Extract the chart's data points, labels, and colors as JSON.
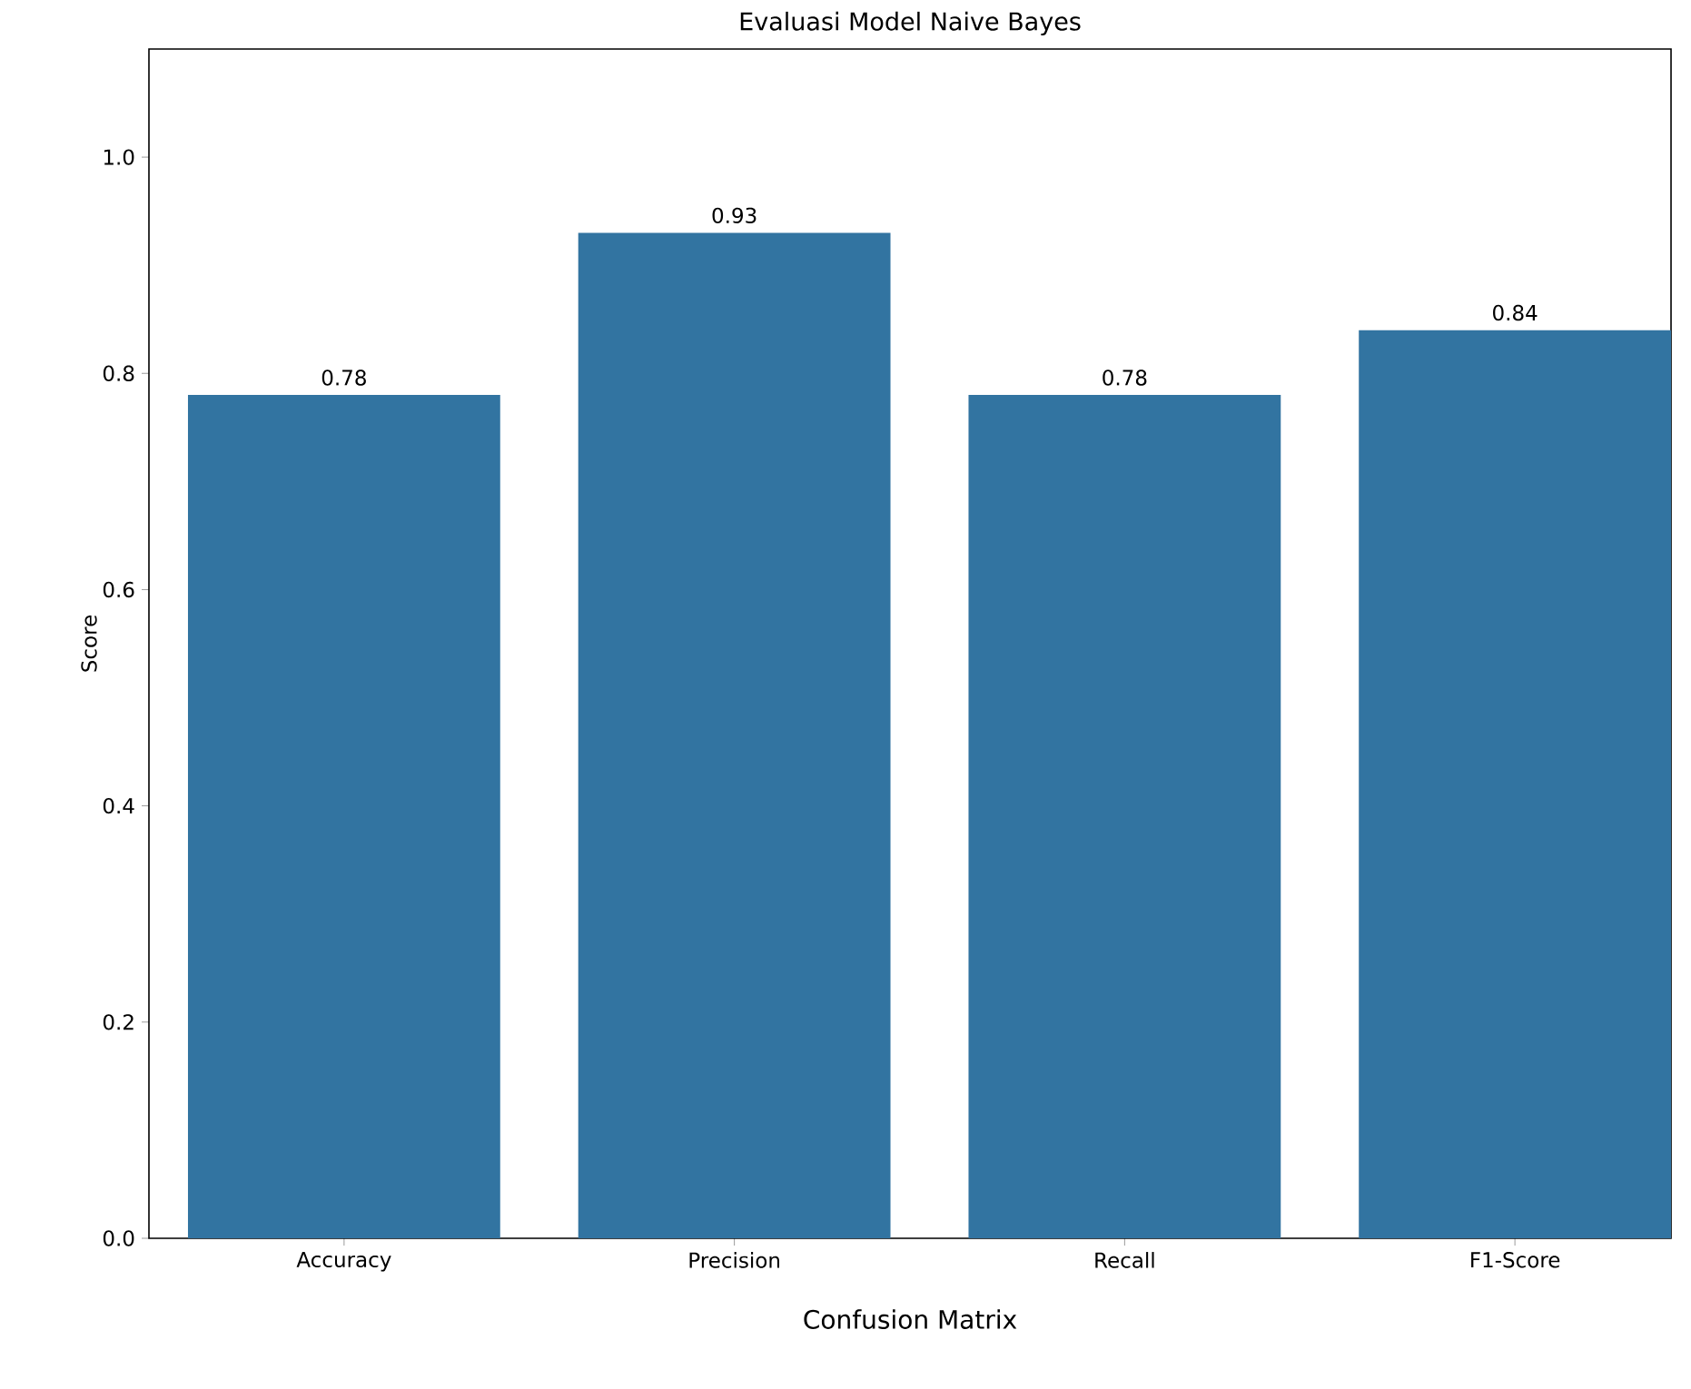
{
  "chart_data": {
    "type": "bar",
    "title": "Evaluasi Model Naive Bayes",
    "xlabel": "Confusion Matrix",
    "ylabel": "Score",
    "categories": [
      "Accuracy",
      "Precision",
      "Recall",
      "F1-Score"
    ],
    "values": [
      0.78,
      0.93,
      0.78,
      0.84
    ],
    "color": "#3274a1",
    "data_labels": true,
    "ylim": [
      0,
      1.1
    ],
    "yticks": [
      {
        "value": 0,
        "label": "0.0"
      },
      0.2,
      0.4,
      0.6,
      0.8,
      {
        "value": 1,
        "label": "1.0"
      }
    ],
    "grid": false
  }
}
